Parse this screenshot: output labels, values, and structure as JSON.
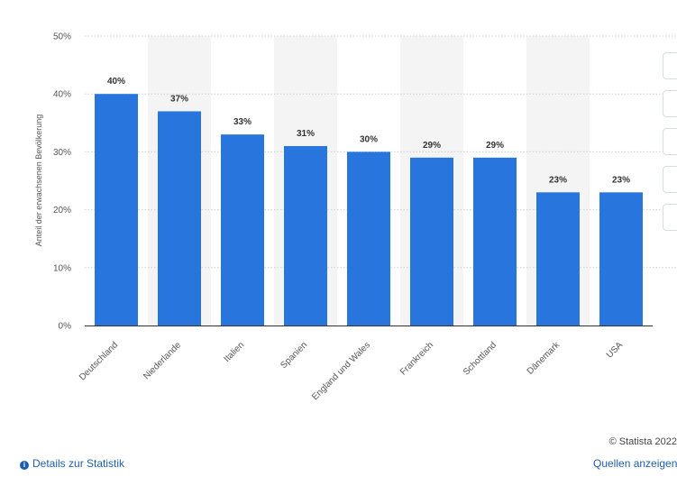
{
  "chart_data": {
    "type": "bar",
    "ylabel": "Anteil der erwachsenen Bevölkerung",
    "ylim": [
      0,
      50
    ],
    "yticks": [
      0,
      10,
      20,
      30,
      40,
      50
    ],
    "ytick_labels": [
      "0%",
      "10%",
      "20%",
      "30%",
      "40%",
      "50%"
    ],
    "categories": [
      "Deutschland",
      "Niederlande",
      "Italien",
      "Spanien",
      "England und Wales",
      "Frankreich",
      "Schottland",
      "Dänemark",
      "USA"
    ],
    "values": [
      40,
      37,
      33,
      31,
      30,
      29,
      29,
      23,
      23
    ],
    "value_labels": [
      "40%",
      "37%",
      "33%",
      "31%",
      "30%",
      "29%",
      "29%",
      "23%",
      "23%"
    ],
    "grid": true,
    "colors": {
      "bar": "#2876dd",
      "band": "#f4f4f4",
      "grid": "#cfcfcf"
    }
  },
  "footer": {
    "copyright": "© Statista 2022",
    "details_link": "Details zur Statistik",
    "sources_link": "Quellen anzeigen",
    "details_icon": "info-icon"
  },
  "toolbar": {
    "buttons": [
      "star-icon",
      "bell-icon",
      "settings-icon",
      "share-icon",
      "quote-icon",
      "print-icon"
    ]
  }
}
